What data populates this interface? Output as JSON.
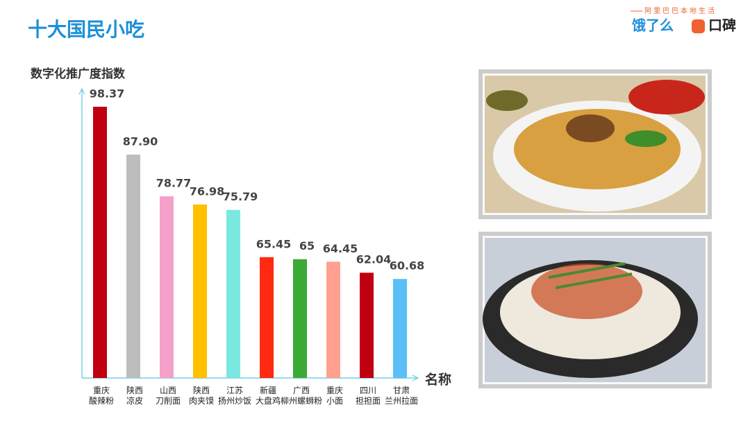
{
  "header": {
    "tagline": "阿里巴巴本地生活",
    "brands": [
      "饿了么",
      "口碑"
    ]
  },
  "chart_data": {
    "type": "bar",
    "title": "十大国民小吃",
    "y_label": "数字化推广度指数",
    "x_label": "名称",
    "categories": [
      "重庆\n酸辣粉",
      "陕西\n凉皮",
      "山西\n刀削面",
      "陕西\n肉夹馍",
      "江苏\n扬州炒饭",
      "新疆\n大盘鸡",
      "广西\n柳州螺蛳粉",
      "重庆\n小面",
      "四川\n担担面",
      "甘肃\n兰州拉面"
    ],
    "values": [
      98.37,
      87.9,
      78.77,
      76.98,
      75.79,
      65.45,
      65,
      64.45,
      62.04,
      60.68
    ],
    "value_labels": [
      "98.37",
      "87.90",
      "78.77",
      "76.98",
      "75.79",
      "65.45",
      "65",
      "64.45",
      "62.04",
      "60.68"
    ],
    "colors": [
      "#c00010",
      "#bdbdbd",
      "#f4a0c8",
      "#ffc000",
      "#7ae8e0",
      "#ff2a10",
      "#3aaa35",
      "#ffa090",
      "#c00010",
      "#5bc0f8"
    ],
    "ylim": [
      39,
      102
    ]
  }
}
